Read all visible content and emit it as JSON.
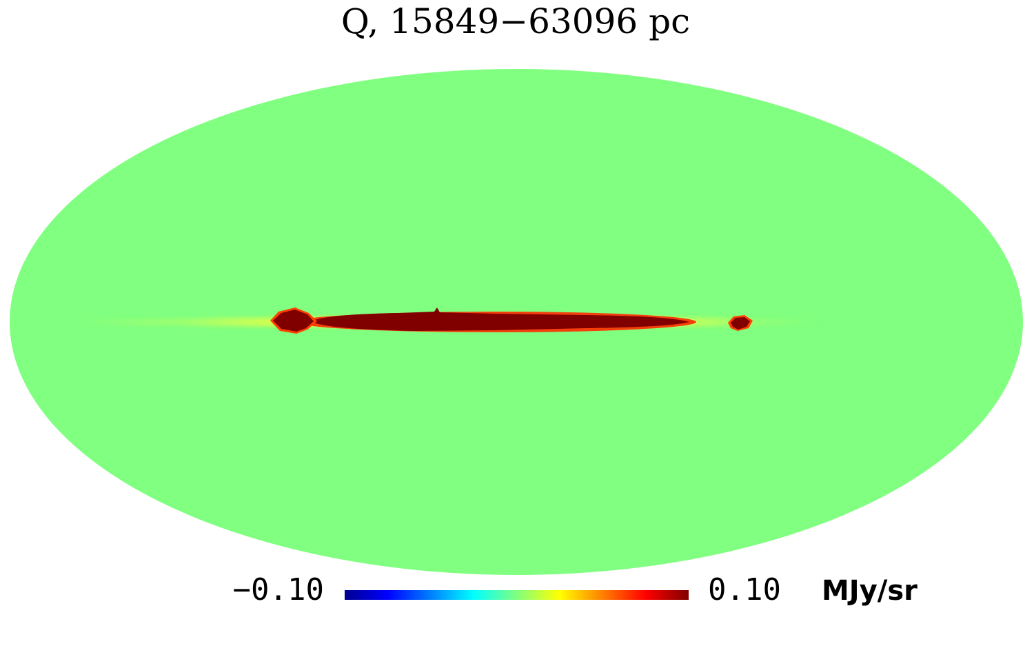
{
  "map": {
    "title": "Q, 15849−63096 pc",
    "projection": "mollweide",
    "background_color": "#80ff80",
    "band_color": "#800000"
  },
  "colorbar": {
    "min_label": "−0.10",
    "max_label": "0.10",
    "unit": "MJy/sr",
    "min": -0.1,
    "max": 0.1,
    "colormap": "jet",
    "stops": [
      "#00008f",
      "#0000ff",
      "#00ffff",
      "#ffff00",
      "#ff0000",
      "#800000"
    ]
  }
}
